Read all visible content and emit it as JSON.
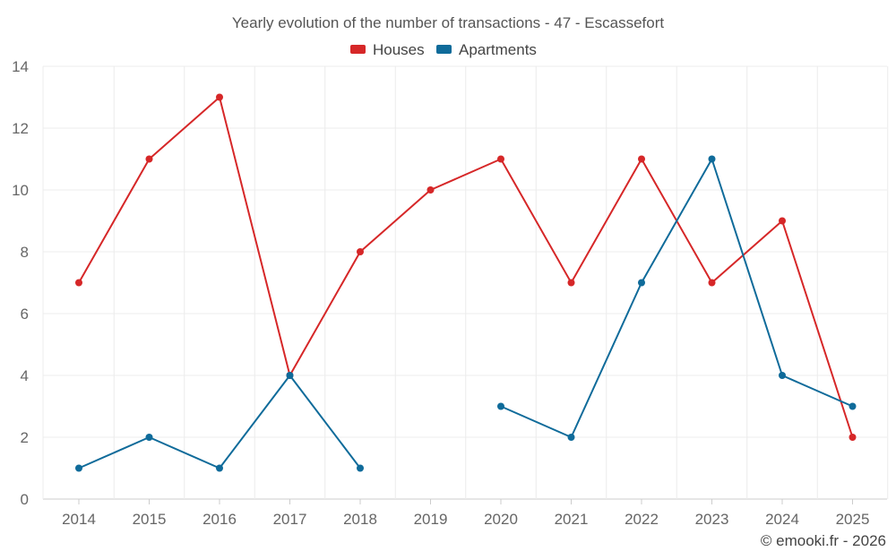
{
  "chart_data": {
    "type": "line",
    "title": "Yearly evolution of the number of transactions - 47 - Escassefort",
    "categories": [
      "2014",
      "2015",
      "2016",
      "2017",
      "2018",
      "2019",
      "2020",
      "2021",
      "2022",
      "2023",
      "2024",
      "2025"
    ],
    "series": [
      {
        "name": "Houses",
        "color": "#d62728",
        "values": [
          7,
          11,
          13,
          4,
          8,
          10,
          11,
          7,
          11,
          7,
          9,
          2
        ]
      },
      {
        "name": "Apartments",
        "color": "#0f6b9a",
        "values": [
          1,
          2,
          1,
          4,
          1,
          null,
          3,
          2,
          7,
          11,
          4,
          3
        ]
      }
    ],
    "ylim": [
      0,
      14
    ],
    "yticks": [
      0,
      2,
      4,
      6,
      8,
      10,
      12,
      14
    ],
    "xlabel": "",
    "ylabel": "",
    "grid": true,
    "legend_position": "top-center"
  },
  "credit": "© emooki.fr - 2026"
}
